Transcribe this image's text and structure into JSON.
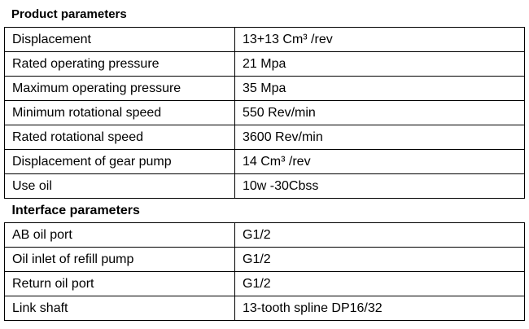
{
  "product_section": {
    "title": "Product parameters",
    "rows": [
      {
        "label": "Displacement",
        "value": "13+13   Cm³ /rev"
      },
      {
        "label": "Rated operating pressure",
        "value": "21   Mpa"
      },
      {
        "label": "Maximum operating pressure",
        "value": "35    Mpa"
      },
      {
        "label": "Minimum rotational speed",
        "value": "550       Rev/min"
      },
      {
        "label": "Rated rotational speed",
        "value": "3600   Rev/min"
      },
      {
        "label": "Displacement of gear pump",
        "value": "14    Cm³ /rev"
      },
      {
        "label": "Use oil",
        "value": "10w -30Cbss"
      }
    ]
  },
  "interface_section": {
    "title": "Interface parameters",
    "rows": [
      {
        "label": "AB oil port",
        "value": "G1/2"
      },
      {
        "label": "Oil inlet of refill pump",
        "value": "G1/2"
      },
      {
        "label": "Return oil port",
        "value": "G1/2"
      },
      {
        "label": "Link shaft",
        "value": "13-tooth spline     DP16/32"
      }
    ]
  }
}
